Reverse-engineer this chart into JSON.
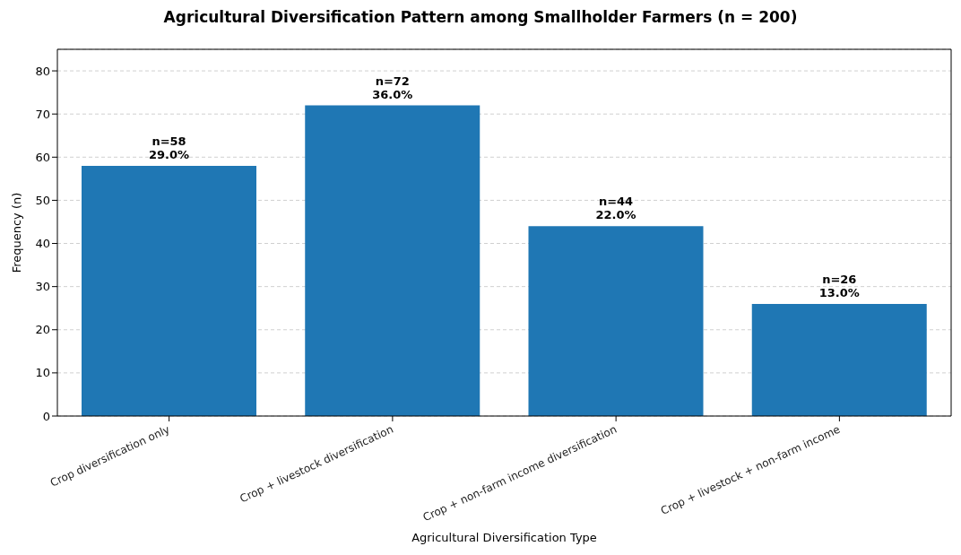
{
  "chart_data": {
    "type": "bar",
    "title": "Agricultural Diversification Pattern among Smallholder Farmers (n = 200)",
    "xlabel": "Agricultural Diversification Type",
    "ylabel": "Frequency (n)",
    "categories": [
      "Crop diversification only",
      "Crop + livestock diversification",
      "Crop + non-farm income diversification",
      "Crop + livestock + non-farm income"
    ],
    "values": [
      58,
      72,
      44,
      26
    ],
    "color": "#1f77b4",
    "value_labels": [
      "n=58\n29.0%",
      "n=72\n36.0%",
      "n=44\n22.0%",
      "n=26\n13.0%"
    ],
    "ylim": [
      0,
      85
    ],
    "yticks": [
      0,
      10,
      20,
      30,
      40,
      50,
      60,
      70,
      80
    ],
    "grid": "y"
  }
}
